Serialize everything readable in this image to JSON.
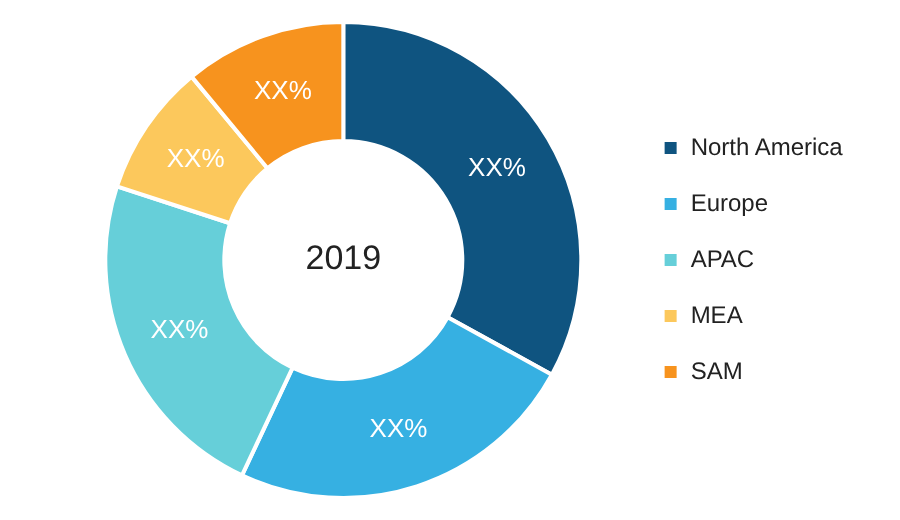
{
  "chart_data": {
    "type": "donut",
    "categories": [
      "North America",
      "Europe",
      "APAC",
      "MEA",
      "SAM"
    ],
    "values": [
      33,
      24,
      23,
      9,
      11
    ],
    "value_labels": [
      "XX%",
      "XX%",
      "XX%",
      "XX%",
      "XX%"
    ],
    "colors": [
      "#0f5480",
      "#36b0e2",
      "#66cfd9",
      "#fcc85c",
      "#f7931e"
    ],
    "annotations": [
      "2019"
    ],
    "legend": "right"
  }
}
